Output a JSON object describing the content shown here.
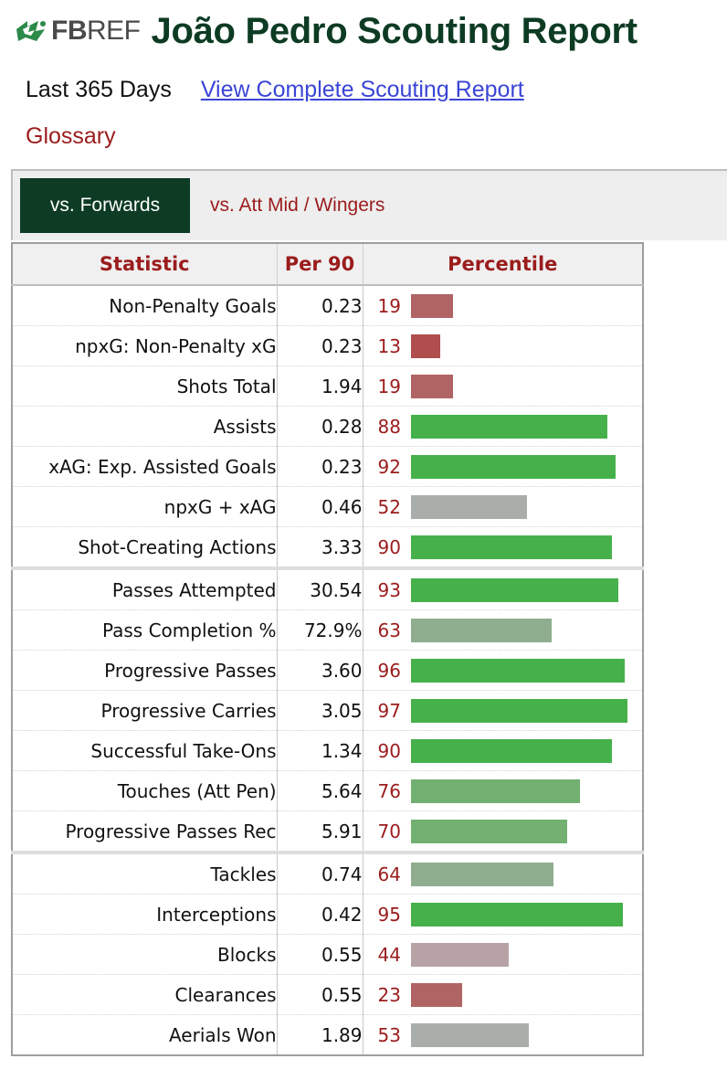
{
  "header": {
    "logo_text_fb": "FB",
    "logo_text_ref": "REF",
    "title": "João Pedro Scouting Report"
  },
  "subheader": {
    "period": "Last 365 Days",
    "report_link": "View Complete Scouting Report",
    "glossary": "Glossary"
  },
  "tabs": [
    {
      "label": "vs. Forwards",
      "active": true
    },
    {
      "label": "vs. Att Mid / Wingers",
      "active": false
    }
  ],
  "table": {
    "headers": {
      "statistic": "Statistic",
      "per90": "Per 90",
      "percentile": "Percentile"
    },
    "groups": [
      [
        {
          "stat": "Non-Penalty Goals",
          "per90": "0.23",
          "percentile": 19
        },
        {
          "stat": "npxG: Non-Penalty xG",
          "per90": "0.23",
          "percentile": 13
        },
        {
          "stat": "Shots Total",
          "per90": "1.94",
          "percentile": 19
        },
        {
          "stat": "Assists",
          "per90": "0.28",
          "percentile": 88
        },
        {
          "stat": "xAG: Exp. Assisted Goals",
          "per90": "0.23",
          "percentile": 92
        },
        {
          "stat": "npxG + xAG",
          "per90": "0.46",
          "percentile": 52
        },
        {
          "stat": "Shot-Creating Actions",
          "per90": "3.33",
          "percentile": 90
        }
      ],
      [
        {
          "stat": "Passes Attempted",
          "per90": "30.54",
          "percentile": 93
        },
        {
          "stat": "Pass Completion %",
          "per90": "72.9%",
          "percentile": 63
        },
        {
          "stat": "Progressive Passes",
          "per90": "3.60",
          "percentile": 96
        },
        {
          "stat": "Progressive Carries",
          "per90": "3.05",
          "percentile": 97
        },
        {
          "stat": "Successful Take-Ons",
          "per90": "1.34",
          "percentile": 90
        },
        {
          "stat": "Touches (Att Pen)",
          "per90": "5.64",
          "percentile": 76
        },
        {
          "stat": "Progressive Passes Rec",
          "per90": "5.91",
          "percentile": 70
        }
      ],
      [
        {
          "stat": "Tackles",
          "per90": "0.74",
          "percentile": 64
        },
        {
          "stat": "Interceptions",
          "per90": "0.42",
          "percentile": 95
        },
        {
          "stat": "Blocks",
          "per90": "0.55",
          "percentile": 44
        },
        {
          "stat": "Clearances",
          "per90": "0.55",
          "percentile": 23
        },
        {
          "stat": "Aerials Won",
          "per90": "1.89",
          "percentile": 53
        }
      ]
    ]
  },
  "colors": {
    "title_green": "#0d3b24",
    "active_tab_bg": "#0d3b24",
    "accent_red": "#9b1c1c",
    "link_blue": "#3a45d6"
  }
}
